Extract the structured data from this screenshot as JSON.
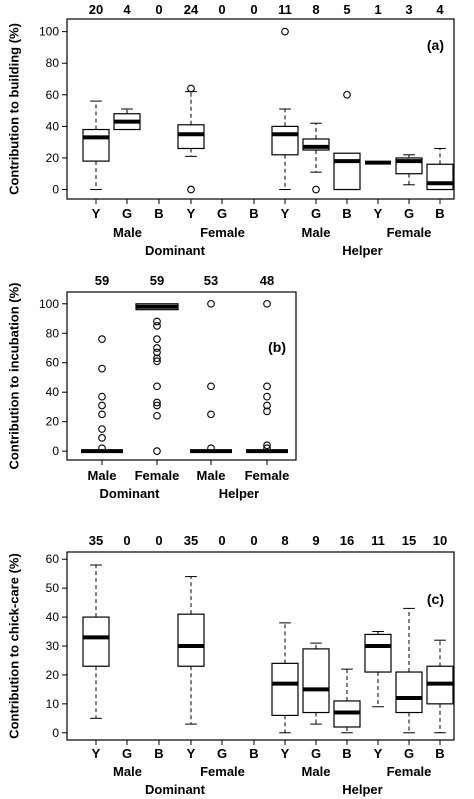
{
  "chart_data": [
    {
      "type": "box",
      "panel_label": "(a)",
      "ylabel": "Contribution to building (%)",
      "yticks": [
        0,
        20,
        40,
        60,
        80,
        100
      ],
      "ylim": [
        -6,
        108
      ],
      "groups": [
        {
          "label": "Dominant",
          "subgroups": [
            {
              "label": "Male",
              "span": [
                0,
                2
              ]
            },
            {
              "label": "Female",
              "span": [
                3,
                5
              ]
            }
          ]
        },
        {
          "label": "Helper",
          "subgroups": [
            {
              "label": "Male",
              "span": [
                6,
                8
              ]
            },
            {
              "label": "Female",
              "span": [
                9,
                11
              ]
            }
          ]
        }
      ],
      "boxes": [
        {
          "x": "Y",
          "n": "20",
          "whislo": 0,
          "q1": 18,
          "med": 33,
          "q3": 38,
          "whishi": 56,
          "fliers": []
        },
        {
          "x": "G",
          "n": "4",
          "whislo": 38,
          "q1": 38,
          "med": 43,
          "q3": 48,
          "whishi": 51,
          "fliers": []
        },
        {
          "x": "B",
          "n": "0",
          "whislo": null,
          "q1": null,
          "med": null,
          "q3": null,
          "whishi": null,
          "fliers": []
        },
        {
          "x": "Y",
          "n": "24",
          "whislo": 21,
          "q1": 26,
          "med": 35,
          "q3": 41,
          "whishi": 62,
          "fliers": [
            0,
            64
          ]
        },
        {
          "x": "G",
          "n": "0",
          "whislo": null,
          "q1": null,
          "med": null,
          "q3": null,
          "whishi": null,
          "fliers": []
        },
        {
          "x": "B",
          "n": "0",
          "whislo": null,
          "q1": null,
          "med": null,
          "q3": null,
          "whishi": null,
          "fliers": []
        },
        {
          "x": "Y",
          "n": "11",
          "whislo": 0,
          "q1": 22,
          "med": 35,
          "q3": 40,
          "whishi": 51,
          "fliers": [
            100
          ]
        },
        {
          "x": "G",
          "n": "8",
          "whislo": 11,
          "q1": 25,
          "med": 27,
          "q3": 32,
          "whishi": 42,
          "fliers": [
            0
          ]
        },
        {
          "x": "B",
          "n": "5",
          "whislo": 0,
          "q1": 0,
          "med": 18,
          "q3": 23,
          "whishi": 23,
          "fliers": [
            60
          ]
        },
        {
          "x": "Y",
          "n": "1",
          "whislo": 17,
          "q1": 17,
          "med": 17,
          "q3": 17,
          "whishi": 17,
          "fliers": []
        },
        {
          "x": "G",
          "n": "3",
          "whislo": 3,
          "q1": 10,
          "med": 18,
          "q3": 20,
          "whishi": 22,
          "fliers": []
        },
        {
          "x": "B",
          "n": "4",
          "whislo": 0,
          "q1": 0,
          "med": 4,
          "q3": 16,
          "whishi": 26,
          "fliers": []
        }
      ]
    },
    {
      "type": "box",
      "panel_label": "(b)",
      "ylabel": "Contribution to incubation (%)",
      "yticks": [
        0,
        20,
        40,
        60,
        80,
        100
      ],
      "ylim": [
        -6,
        108
      ],
      "groups": [
        {
          "label": "Dominant",
          "subgroups": [
            {
              "label": "Male",
              "span": [
                0,
                0
              ]
            },
            {
              "label": "Female",
              "span": [
                1,
                1
              ]
            }
          ]
        },
        {
          "label": "Helper",
          "subgroups": [
            {
              "label": "Male",
              "span": [
                2,
                2
              ]
            },
            {
              "label": "Female",
              "span": [
                3,
                3
              ]
            }
          ]
        }
      ],
      "boxes": [
        {
          "x": "Male",
          "n": "59",
          "whislo": 0,
          "q1": 0,
          "med": 0,
          "q3": 0,
          "whishi": 0,
          "fliers": [
            2,
            9,
            15,
            25,
            31,
            37,
            56,
            76
          ]
        },
        {
          "x": "Female",
          "n": "59",
          "whislo": 96,
          "q1": 96,
          "med": 98,
          "q3": 100,
          "whishi": 100,
          "fliers": [
            0,
            24,
            31,
            33,
            44,
            61,
            63,
            67,
            70,
            76,
            85,
            88
          ]
        },
        {
          "x": "Male",
          "n": "53",
          "whislo": 0,
          "q1": 0,
          "med": 0,
          "q3": 0,
          "whishi": 0,
          "fliers": [
            2,
            25,
            44,
            100
          ]
        },
        {
          "x": "Female",
          "n": "48",
          "whislo": 0,
          "q1": 0,
          "med": 0,
          "q3": 0,
          "whishi": 0,
          "fliers": [
            2,
            4,
            27,
            31,
            37,
            44,
            100
          ]
        }
      ]
    },
    {
      "type": "box",
      "panel_label": "(c)",
      "ylabel": "Contribution to chick-care (%)",
      "yticks": [
        0,
        10,
        20,
        30,
        40,
        50,
        60
      ],
      "ylim": [
        -2.5,
        62.5
      ],
      "groups": [
        {
          "label": "Dominant",
          "subgroups": [
            {
              "label": "Male",
              "span": [
                0,
                2
              ]
            },
            {
              "label": "Female",
              "span": [
                3,
                5
              ]
            }
          ]
        },
        {
          "label": "Helper",
          "subgroups": [
            {
              "label": "Male",
              "span": [
                6,
                8
              ]
            },
            {
              "label": "Female",
              "span": [
                9,
                11
              ]
            }
          ]
        }
      ],
      "boxes": [
        {
          "x": "Y",
          "n": "35",
          "whislo": 5,
          "q1": 23,
          "med": 33,
          "q3": 40,
          "whishi": 58,
          "fliers": []
        },
        {
          "x": "G",
          "n": "0",
          "whislo": null,
          "q1": null,
          "med": null,
          "q3": null,
          "whishi": null,
          "fliers": []
        },
        {
          "x": "B",
          "n": "0",
          "whislo": null,
          "q1": null,
          "med": null,
          "q3": null,
          "whishi": null,
          "fliers": []
        },
        {
          "x": "Y",
          "n": "35",
          "whislo": 3,
          "q1": 23,
          "med": 30,
          "q3": 41,
          "whishi": 54,
          "fliers": []
        },
        {
          "x": "G",
          "n": "0",
          "whislo": null,
          "q1": null,
          "med": null,
          "q3": null,
          "whishi": null,
          "fliers": []
        },
        {
          "x": "B",
          "n": "0",
          "whislo": null,
          "q1": null,
          "med": null,
          "q3": null,
          "whishi": null,
          "fliers": []
        },
        {
          "x": "Y",
          "n": "8",
          "whislo": 0,
          "q1": 6,
          "med": 17,
          "q3": 24,
          "whishi": 38,
          "fliers": []
        },
        {
          "x": "G",
          "n": "9",
          "whislo": 3,
          "q1": 7,
          "med": 15,
          "q3": 29,
          "whishi": 31,
          "fliers": []
        },
        {
          "x": "B",
          "n": "16",
          "whislo": 0,
          "q1": 2,
          "med": 7,
          "q3": 11,
          "whishi": 22,
          "fliers": []
        },
        {
          "x": "Y",
          "n": "11",
          "whislo": 9,
          "q1": 21,
          "med": 30,
          "q3": 34,
          "whishi": 35,
          "fliers": []
        },
        {
          "x": "G",
          "n": "15",
          "whislo": 0,
          "q1": 7,
          "med": 12,
          "q3": 21,
          "whishi": 43,
          "fliers": []
        },
        {
          "x": "B",
          "n": "10",
          "whislo": 0,
          "q1": 10,
          "med": 17,
          "q3": 23,
          "whishi": 32,
          "fliers": []
        }
      ]
    }
  ]
}
